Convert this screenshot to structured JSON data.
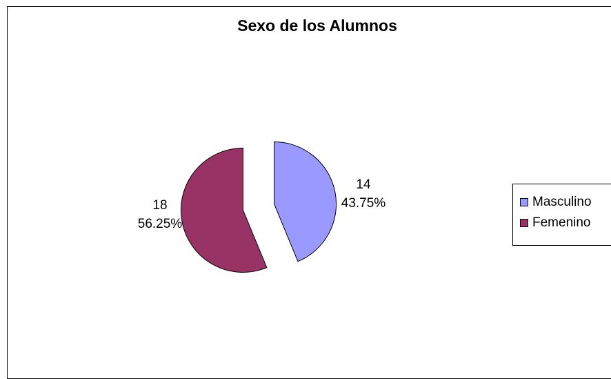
{
  "chart_data": {
    "type": "pie",
    "title": "Sexo de los Alumnos",
    "categories": [
      "Masculino",
      "Femenino"
    ],
    "values": [
      14,
      18
    ],
    "percent_labels": [
      "43.75%",
      "56.25%"
    ],
    "colors": [
      "#9999ff",
      "#993366"
    ],
    "exploded": true,
    "legend_position": "right"
  },
  "legend": {
    "items": [
      {
        "label": "Masculino",
        "color": "#9999ff"
      },
      {
        "label": "Femenino",
        "color": "#993366"
      }
    ]
  }
}
